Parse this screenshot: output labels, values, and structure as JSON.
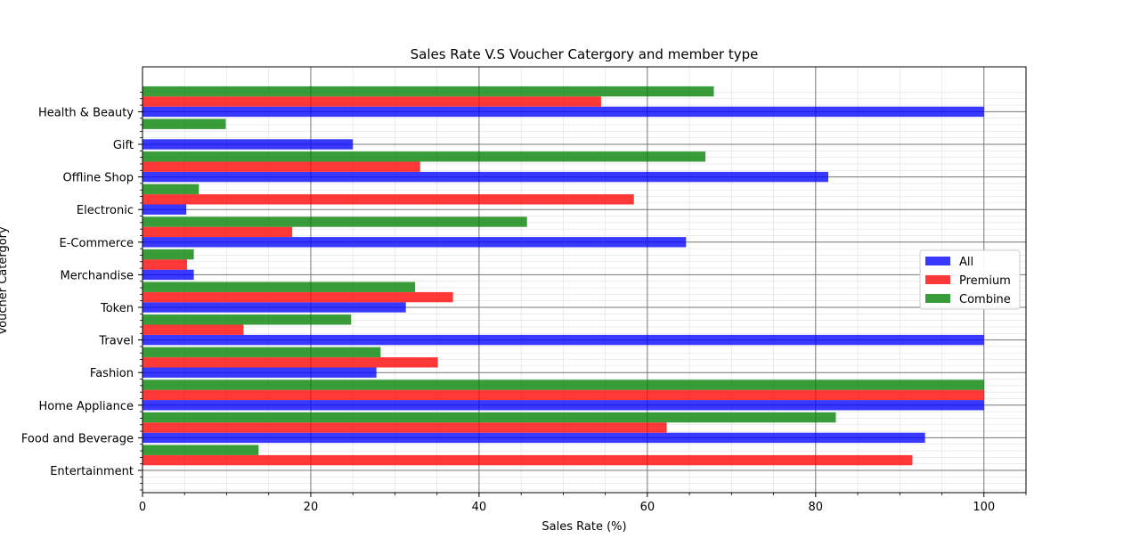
{
  "chart_data": {
    "type": "bar",
    "orientation": "horizontal",
    "title": "Sales Rate V.S Voucher Catergory and member type",
    "xlabel": "Sales Rate (%)",
    "ylabel": "Voucher Catergory",
    "xlim": [
      0,
      105
    ],
    "xticks": [
      "0",
      "20",
      "40",
      "60",
      "80",
      "100"
    ],
    "grid": true,
    "legend_position": "center-right",
    "categories": [
      "Entertainment",
      "Food and Beverage",
      "Home Appliance",
      "Fashion",
      "Travel",
      "Token",
      "Merchandise",
      "E-Commerce",
      "Electronic",
      "Offline Shop",
      "Gift",
      "Health & Beauty"
    ],
    "series": [
      {
        "name": "All",
        "color": "#0000ff",
        "values": [
          0,
          93,
          100,
          27.8,
          100,
          31.3,
          6.1,
          64.6,
          5.2,
          81.5,
          25,
          100
        ]
      },
      {
        "name": "Premium",
        "color": "#ff0000",
        "values": [
          91.5,
          62.3,
          100,
          35.1,
          12,
          36.9,
          5.3,
          17.8,
          58.4,
          33,
          0,
          54.5
        ]
      },
      {
        "name": "Combine",
        "color": "#008000",
        "values": [
          13.8,
          82.4,
          100,
          28.3,
          24.8,
          32.4,
          6.1,
          45.7,
          6.7,
          66.9,
          9.9,
          67.9
        ]
      }
    ]
  }
}
